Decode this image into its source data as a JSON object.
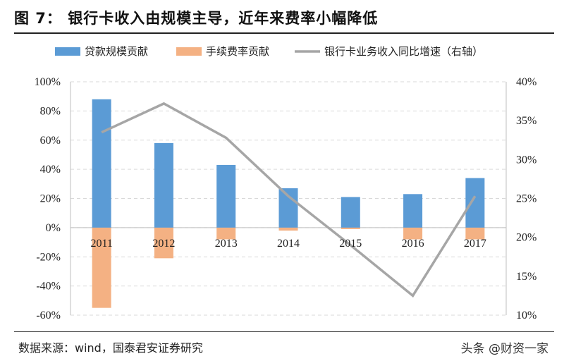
{
  "header": {
    "title": "图 7：  银行卡收入由规模主导，近年来费率小幅降低"
  },
  "footer": {
    "source": "数据来源：wind，国泰君安证券研究",
    "watermark": "头条 @财资一家"
  },
  "colors": {
    "series1": "#5b9bd5",
    "series2": "#f4b183",
    "series3": "#a6a6a6",
    "grid": "#d9d9d9"
  },
  "chart_data": {
    "type": "bar",
    "categories": [
      "2011",
      "2012",
      "2013",
      "2014",
      "2015",
      "2016",
      "2017"
    ],
    "series": [
      {
        "name": "贷款规模贡献",
        "axis": "left",
        "type": "bar",
        "values": [
          88,
          58,
          43,
          27,
          21,
          23,
          34
        ]
      },
      {
        "name": "手续费率贡献",
        "axis": "left",
        "type": "bar",
        "values": [
          -55,
          -21,
          -8,
          -2,
          -1,
          -8,
          -8
        ]
      },
      {
        "name": "银行卡业务收入同比增速（右轴）",
        "axis": "right",
        "type": "line",
        "values": [
          33.5,
          37.2,
          32.8,
          25.3,
          19.0,
          12.5,
          25.3
        ]
      }
    ],
    "ylim_left": [
      -60,
      100
    ],
    "yticks_left": [
      "100%",
      "80%",
      "60%",
      "40%",
      "20%",
      "0%",
      "-20%",
      "-40%",
      "-60%"
    ],
    "ylim_right": [
      10,
      40
    ],
    "yticks_right": [
      "40%",
      "35%",
      "30%",
      "25%",
      "20%",
      "15%",
      "10%"
    ],
    "grid": true,
    "legend": "top"
  }
}
